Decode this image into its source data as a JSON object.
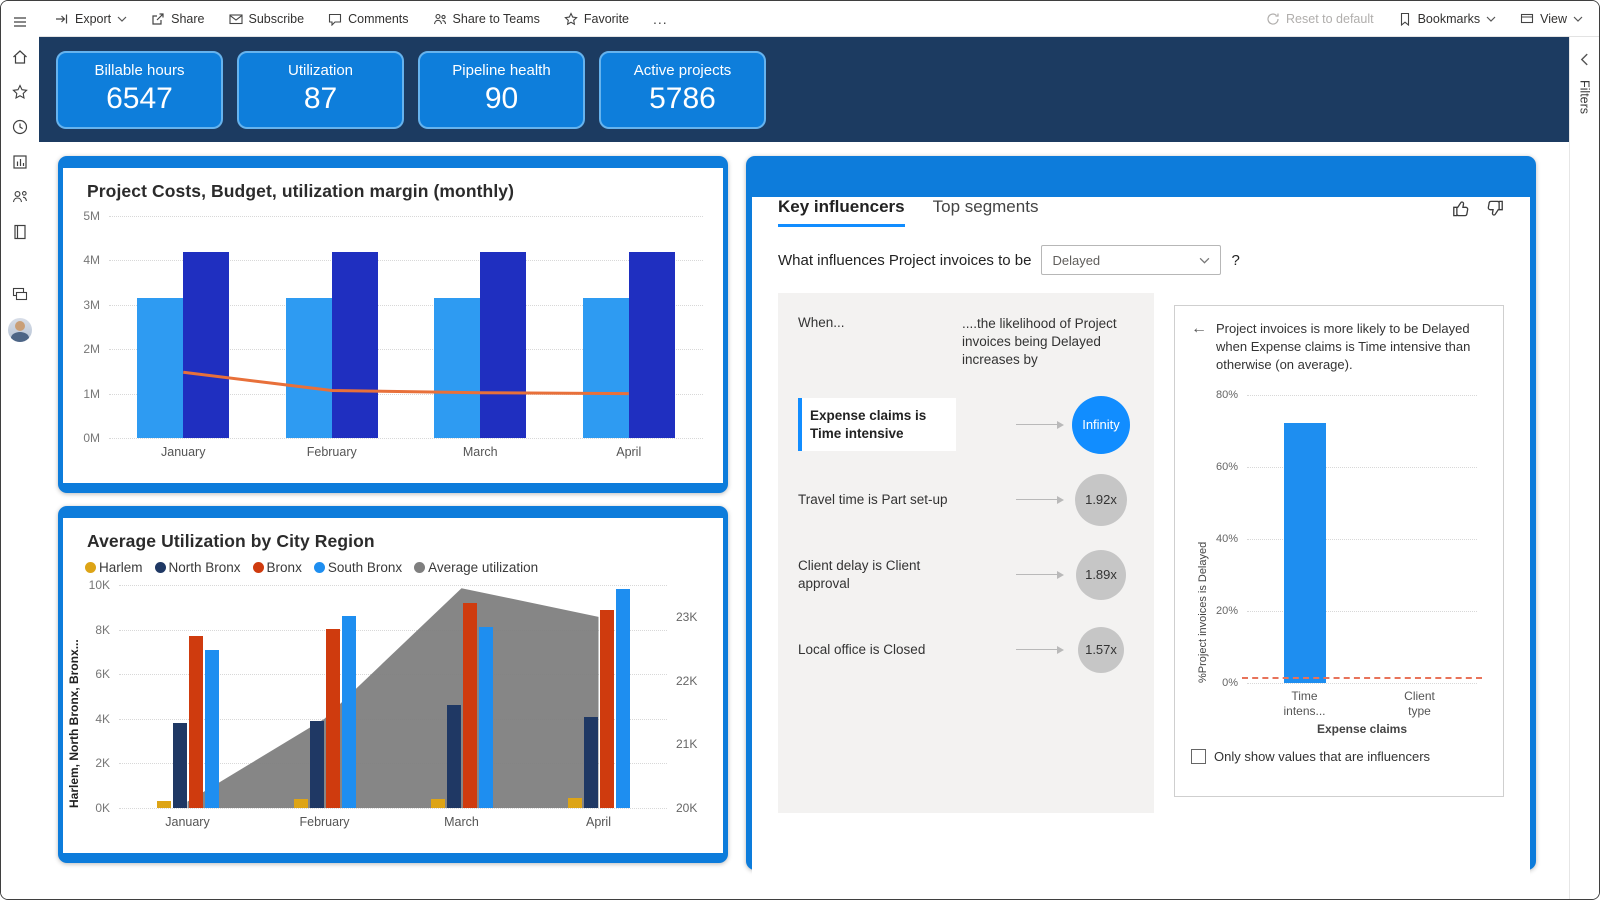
{
  "toolbar": {
    "export": "Export",
    "share": "Share",
    "subscribe": "Subscribe",
    "comments": "Comments",
    "share_teams": "Share to Teams",
    "favorite": "Favorite",
    "more": "...",
    "reset": "Reset to default",
    "bookmarks": "Bookmarks",
    "view": "View"
  },
  "right_rail": {
    "filters": "Filters"
  },
  "kpis": [
    {
      "label": "Billable hours",
      "value": "6547"
    },
    {
      "label": "Utilization",
      "value": "87"
    },
    {
      "label": "Pipeline health",
      "value": "90"
    },
    {
      "label": "Active projects",
      "value": "5786"
    }
  ],
  "influencers_card": {
    "tabs": [
      "Key influencers",
      "Top segments"
    ],
    "question": "What influences Project invoices to be",
    "dropdown_value": "Delayed",
    "question_mark": "?",
    "when_label": "When...",
    "likelihood_label": "....the likelihood of Project invoices being Delayed increases by",
    "rows": [
      {
        "label": "Expense claims is Time intensive",
        "value": "Infinity",
        "highlight": true
      },
      {
        "label": "Travel time is Part set-up",
        "value": "1.92x",
        "highlight": false
      },
      {
        "label": "Client delay is Client approval",
        "value": "1.89x",
        "highlight": false
      },
      {
        "label": "Local office is Closed",
        "value": "1.57x",
        "highlight": false
      }
    ],
    "insight": "Project invoices is more likely to be Delayed when Expense claims is Time intensive than otherwise (on average).",
    "checkbox_label": "Only show values that are influencers"
  },
  "colors": {
    "band_navy": "#1C3B61",
    "kpi_blue": "#0E7EDB",
    "card_frame_blue": "#0D7CDB",
    "accent_blue": "#118DFF"
  },
  "chart_data": [
    {
      "type": "bar+line",
      "title": "Project Costs, Budget, utilization margin (monthly)",
      "categories": [
        "January",
        "February",
        "March",
        "April"
      ],
      "series": [
        {
          "name": "Project Costs",
          "color": "#2E9BF2",
          "values": [
            3150000,
            3150000,
            3150000,
            3150000
          ]
        },
        {
          "name": "Budget",
          "color": "#1F2FC0",
          "values": [
            4180000,
            4180000,
            4180000,
            4180000
          ]
        }
      ],
      "line": {
        "name": "utilization margin",
        "color": "#E8703A",
        "values": [
          1480000,
          1070000,
          1020000,
          1000000
        ]
      },
      "ylim": [
        0,
        5000000
      ],
      "yticks": [
        "5M",
        "4M",
        "3M",
        "2M",
        "1M",
        "0M"
      ],
      "grid": true,
      "legend_position": "none"
    },
    {
      "type": "bar+area",
      "title": "Average Utilization by City Region",
      "categories": [
        "January",
        "February",
        "March",
        "April"
      ],
      "y_axis_title": "Harlem, North Bronx, Bronx...",
      "series": [
        {
          "name": "Harlem",
          "color": "#DDA416",
          "values": [
            300,
            420,
            400,
            440
          ]
        },
        {
          "name": "North Bronx",
          "color": "#1F3864",
          "values": [
            3800,
            3900,
            4600,
            4100
          ]
        },
        {
          "name": "Bronx",
          "color": "#CF3B0E",
          "values": [
            7700,
            8050,
            9200,
            8900
          ]
        },
        {
          "name": "South Bronx",
          "color": "#1E8EF0",
          "values": [
            7100,
            8600,
            8100,
            9800
          ]
        }
      ],
      "area": {
        "name": "Average utilization",
        "color": "#7F7F7F",
        "axis": "secondary",
        "values": [
          20100,
          21400,
          23450,
          23000
        ]
      },
      "ylim": [
        0,
        10000
      ],
      "yticks": [
        "10K",
        "8K",
        "6K",
        "4K",
        "2K",
        "0K"
      ],
      "y2lim": [
        20000,
        23500
      ],
      "y2ticks": [
        {
          "label": "23K",
          "value": 23000
        },
        {
          "label": "22K",
          "value": 22000
        },
        {
          "label": "21K",
          "value": 21000
        },
        {
          "label": "20K",
          "value": 20000
        }
      ],
      "legend": [
        "Harlem",
        "North Bronx",
        "Bronx",
        "South Bronx",
        "Average utilization"
      ],
      "legend_position": "top",
      "grid": true
    },
    {
      "type": "bar",
      "title": "",
      "categories": [
        "Time intens...",
        "Client type"
      ],
      "values": [
        72,
        0
      ],
      "average_line_value": 1,
      "ylabel": "%Project invoices is Delayed",
      "x_group_label": "Expense claims",
      "ylim": [
        0,
        80
      ],
      "yticks": [
        "80%",
        "60%",
        "40%",
        "20%",
        "0%"
      ],
      "bar_color": "#1E8EF0",
      "avg_color": "#E8735A",
      "grid": true
    }
  ]
}
